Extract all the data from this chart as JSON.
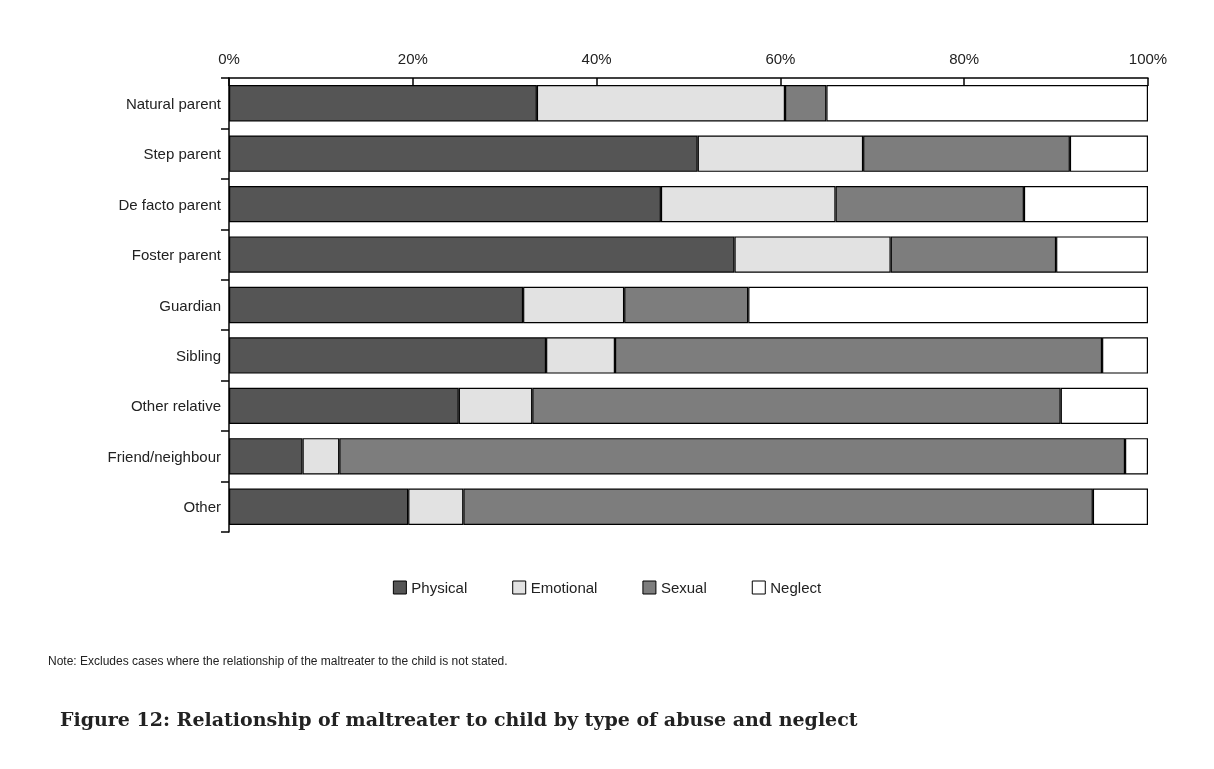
{
  "chart_data": {
    "type": "bar",
    "orientation": "horizontal",
    "stacked": true,
    "title": "Figure 12: Relationship of maltreater to child by type of abuse and neglect",
    "categories": [
      "Natural parent",
      "Step parent",
      "De facto parent",
      "Foster parent",
      "Guardian",
      "Sibling",
      "Other relative",
      "Friend/neighbour",
      "Other"
    ],
    "series": [
      {
        "name": "Physical",
        "color": "#555555",
        "values": [
          33.5,
          51,
          47,
          55,
          32,
          34.5,
          25,
          8,
          19.5
        ]
      },
      {
        "name": "Emotional",
        "color": "#e2e2e2",
        "values": [
          27,
          18,
          19,
          17,
          11,
          7.5,
          8,
          4,
          6
        ]
      },
      {
        "name": "Sexual",
        "color": "#7d7d7d",
        "values": [
          4.5,
          22.5,
          20.5,
          18,
          13.5,
          53,
          57.5,
          85.5,
          68.5
        ]
      },
      {
        "name": "Neglect",
        "color": "#ffffff",
        "values": [
          35,
          8.5,
          13.5,
          10,
          43.5,
          5,
          9.5,
          2.5,
          6
        ]
      }
    ],
    "xlim": [
      0,
      100
    ],
    "xticks": [
      {
        "value": 0,
        "label": "0%"
      },
      {
        "value": 20,
        "label": "20%"
      },
      {
        "value": 40,
        "label": "40%"
      },
      {
        "value": 60,
        "label": "60%"
      },
      {
        "value": 80,
        "label": "80%"
      },
      {
        "value": 100,
        "label": "100%"
      }
    ],
    "grid": false,
    "legend": "bottom",
    "annotations": [
      "Note: Excludes cases where the relationship of the maltreater to the child is not stated."
    ]
  }
}
